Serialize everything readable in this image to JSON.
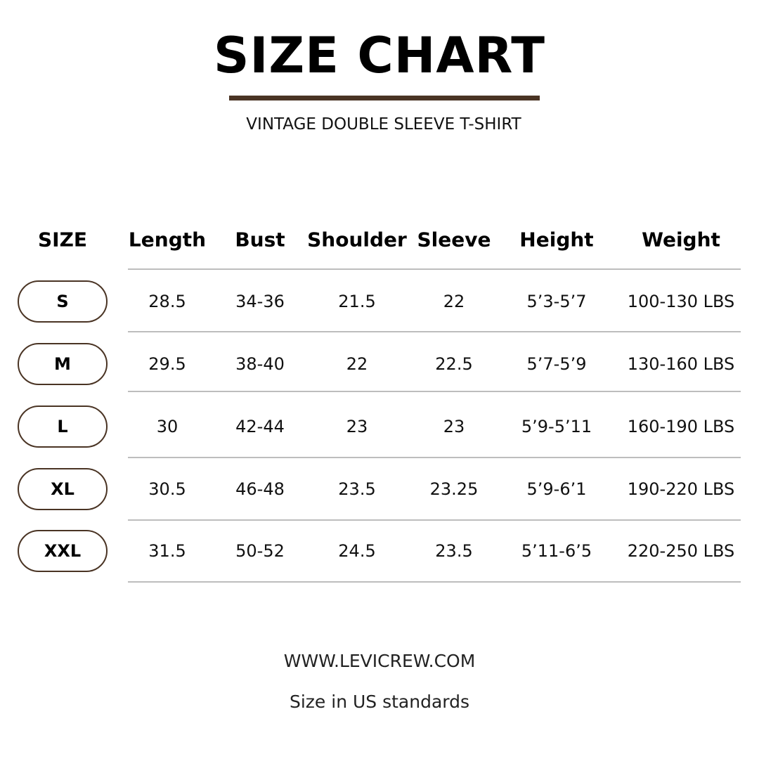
{
  "title": "SIZE CHART",
  "subtitle": "VINTAGE DOUBLE SLEEVE T-SHIRT",
  "accent_color": "#4a3424",
  "table": {
    "headers": [
      "SIZE",
      "Length",
      "Bust",
      "Shoulder",
      "Sleeve",
      "Height",
      "Weight"
    ],
    "rows": [
      [
        "S",
        "28.5",
        "34-36",
        "21.5",
        "22",
        "5’3-5’7",
        "100-130 LBS"
      ],
      [
        "M",
        "29.5",
        "38-40",
        "22",
        "22.5",
        "5’7-5’9",
        "130-160 LBS"
      ],
      [
        "L",
        "30",
        "42-44",
        "23",
        "23",
        "5’9-5’11",
        "160-190 LBS"
      ],
      [
        "XL",
        "30.5",
        "46-48",
        "23.5",
        "23.25",
        "5’9-6’1",
        "190-220 LBS"
      ],
      [
        "XXL",
        "31.5",
        "50-52",
        "24.5",
        "23.5",
        "5’11-6’5",
        "220-250 LBS"
      ]
    ]
  },
  "footer": {
    "website": "WWW.LEVICREW.COM",
    "note": "Size in US standards"
  }
}
